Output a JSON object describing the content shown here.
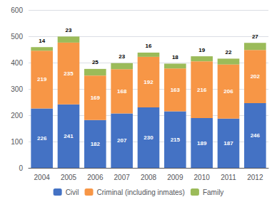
{
  "chart_data": {
    "type": "bar",
    "stacked": true,
    "categories": [
      "2004",
      "2005",
      "2006",
      "2007",
      "2008",
      "2009",
      "2010",
      "2011",
      "2012"
    ],
    "series": [
      {
        "name": "Civil",
        "color": "#4472c4",
        "values": [
          226,
          241,
          182,
          207,
          230,
          215,
          189,
          187,
          246
        ]
      },
      {
        "name": "Criminal (including inmates)",
        "color": "#f79646",
        "values": [
          219,
          235,
          169,
          168,
          192,
          163,
          216,
          206,
          202
        ]
      },
      {
        "name": "Family",
        "color": "#9bbb59",
        "values": [
          14,
          23,
          25,
          23,
          16,
          18,
          19,
          22,
          27
        ]
      }
    ],
    "ylim": [
      0,
      600
    ],
    "yticks": [
      0,
      100,
      200,
      300,
      400,
      500,
      600
    ],
    "grid": true,
    "legend": "bottom",
    "data_labels": true
  }
}
